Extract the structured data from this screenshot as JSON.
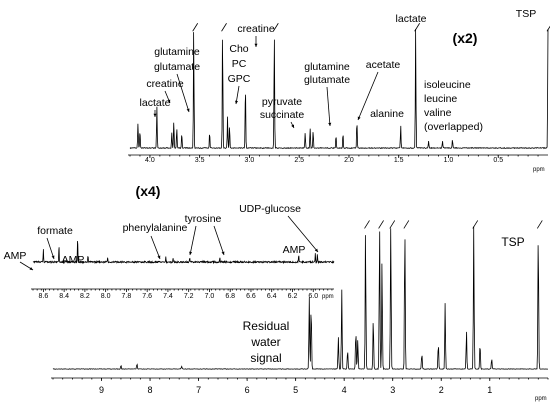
{
  "chart_data": [
    {
      "type": "line",
      "panel": "top",
      "magnification": "(x2)",
      "xlim": [
        4.2,
        0.0
      ],
      "x_ticks": [
        4.0,
        3.5,
        3.0,
        2.5,
        2.0,
        1.5,
        1.0,
        0.5
      ],
      "x_tick_labels": [
        "4.0",
        "3.5",
        "3.0",
        "2.5",
        "2.0",
        "1.5",
        "1.0",
        "0.5"
      ],
      "x_unit": "ppm",
      "peaks": [
        {
          "x": 4.12,
          "h": 0.2
        },
        {
          "x": 4.1,
          "h": 0.14
        },
        {
          "x": 3.93,
          "h": 0.34
        },
        {
          "x": 3.78,
          "h": 0.12
        },
        {
          "x": 3.76,
          "h": 0.22
        },
        {
          "x": 3.73,
          "h": 0.16
        },
        {
          "x": 3.68,
          "h": 0.12
        },
        {
          "x": 3.56,
          "h": 1.1
        },
        {
          "x": 3.4,
          "h": 0.13
        },
        {
          "x": 3.27,
          "h": 1.1
        },
        {
          "x": 3.22,
          "h": 0.25
        },
        {
          "x": 3.2,
          "h": 0.18
        },
        {
          "x": 3.04,
          "h": 0.52
        },
        {
          "x": 2.75,
          "h": 1.1
        },
        {
          "x": 2.44,
          "h": 0.12
        },
        {
          "x": 2.39,
          "h": 0.16
        },
        {
          "x": 2.36,
          "h": 0.14
        },
        {
          "x": 2.13,
          "h": 0.1
        },
        {
          "x": 2.06,
          "h": 0.12
        },
        {
          "x": 1.92,
          "h": 0.22
        },
        {
          "x": 1.48,
          "h": 0.18
        },
        {
          "x": 1.33,
          "h": 1.1
        },
        {
          "x": 1.2,
          "h": 0.06
        },
        {
          "x": 1.06,
          "h": 0.06
        },
        {
          "x": 0.96,
          "h": 0.07
        },
        {
          "x": 0.0,
          "h": 1.1
        }
      ],
      "annotations": [
        {
          "label": [
            "lactate"
          ],
          "x": 4.12
        },
        {
          "label": [
            "creatine"
          ],
          "x": 3.93
        },
        {
          "label": [
            "glutamine",
            "glutamate"
          ],
          "x": 3.76
        },
        {
          "label": [
            "Cho",
            "PC",
            "GPC"
          ],
          "x": 3.22
        },
        {
          "label": [
            "creatine"
          ],
          "x": 3.04
        },
        {
          "label": [
            "pyruvate",
            "succinate"
          ],
          "x": 2.39
        },
        {
          "label": [
            "glutamine",
            "glutamate"
          ],
          "x": 2.1
        },
        {
          "label": [
            "acetate"
          ],
          "x": 1.92
        },
        {
          "label": [
            "alanine"
          ],
          "x": 1.48
        },
        {
          "label": [
            "lactate"
          ],
          "x": 1.33
        },
        {
          "label": [
            "isoleucine",
            "leucine",
            "valine",
            "(overlapped)"
          ],
          "x": 1.0
        },
        {
          "label": [
            "TSP"
          ],
          "x": 0.0
        }
      ]
    },
    {
      "type": "line",
      "panel": "inset",
      "magnification": "(x4)",
      "xlim": [
        8.7,
        5.8
      ],
      "x_ticks": [
        8.6,
        8.4,
        8.2,
        8.0,
        7.8,
        7.6,
        7.4,
        7.2,
        7.0,
        6.8,
        6.6,
        6.4,
        6.2,
        6.0
      ],
      "x_tick_labels": [
        "8.6",
        "8.4",
        "8.2",
        "8.0",
        "7.8",
        "7.6",
        "7.4",
        "7.2",
        "7.0",
        "6.8",
        "6.6",
        "6.4",
        "6.2",
        "6.0"
      ],
      "x_unit": "ppm",
      "peaks": [
        {
          "x": 8.6,
          "h": 0.45
        },
        {
          "x": 8.45,
          "h": 0.6
        },
        {
          "x": 8.27,
          "h": 0.85
        },
        {
          "x": 8.17,
          "h": 0.2
        },
        {
          "x": 7.98,
          "h": 0.15
        },
        {
          "x": 7.42,
          "h": 0.18
        },
        {
          "x": 7.35,
          "h": 0.14
        },
        {
          "x": 7.19,
          "h": 0.16
        },
        {
          "x": 6.9,
          "h": 0.14
        },
        {
          "x": 6.14,
          "h": 0.25
        },
        {
          "x": 5.98,
          "h": 0.3
        },
        {
          "x": 5.96,
          "h": 0.28
        }
      ],
      "annotations": [
        {
          "label": [
            "AMP"
          ],
          "x": 8.6
        },
        {
          "label": [
            "formate"
          ],
          "x": 8.45
        },
        {
          "label": [
            "AMP"
          ],
          "x": 8.27
        },
        {
          "label": [
            "phenylalanine"
          ],
          "x": 7.35
        },
        {
          "label": [
            "tyrosine"
          ],
          "x": 7.19
        },
        {
          "label": [
            "tyrosine"
          ],
          "x": 6.9
        },
        {
          "label": [
            "UDP-glucose"
          ],
          "x": 5.98
        },
        {
          "label": [
            "AMP"
          ],
          "x": 6.14
        }
      ]
    },
    {
      "type": "line",
      "panel": "full",
      "xlim": [
        10.0,
        -0.2
      ],
      "x_ticks": [
        9,
        8,
        7,
        6,
        5,
        4,
        3,
        2,
        1
      ],
      "x_tick_labels": [
        "9",
        "8",
        "7",
        "6",
        "5",
        "4",
        "3",
        "2",
        "1"
      ],
      "x_unit": "ppm",
      "peaks": [
        {
          "x": 8.6,
          "h": 0.03
        },
        {
          "x": 8.27,
          "h": 0.04
        },
        {
          "x": 7.35,
          "h": 0.02
        },
        {
          "x": 4.72,
          "h": 0.55
        },
        {
          "x": 4.68,
          "h": 0.5
        },
        {
          "x": 4.12,
          "h": 0.25
        },
        {
          "x": 4.05,
          "h": 0.6
        },
        {
          "x": 3.93,
          "h": 0.15
        },
        {
          "x": 3.76,
          "h": 0.3
        },
        {
          "x": 3.72,
          "h": 0.22
        },
        {
          "x": 3.56,
          "h": 1.25
        },
        {
          "x": 3.4,
          "h": 0.4
        },
        {
          "x": 3.27,
          "h": 1.25
        },
        {
          "x": 3.22,
          "h": 0.85
        },
        {
          "x": 3.04,
          "h": 1.25
        },
        {
          "x": 2.75,
          "h": 1.25
        },
        {
          "x": 2.4,
          "h": 0.12
        },
        {
          "x": 2.06,
          "h": 0.2
        },
        {
          "x": 1.92,
          "h": 0.5
        },
        {
          "x": 1.48,
          "h": 0.3
        },
        {
          "x": 1.33,
          "h": 1.25
        },
        {
          "x": 1.2,
          "h": 0.2
        },
        {
          "x": 0.96,
          "h": 0.08
        },
        {
          "x": 0.0,
          "h": 1.25
        }
      ],
      "annotations": [
        {
          "label": [
            "Residual",
            "water",
            "signal"
          ],
          "x": 4.72
        },
        {
          "label": [
            "TSP"
          ],
          "x": 0.0
        }
      ]
    }
  ]
}
